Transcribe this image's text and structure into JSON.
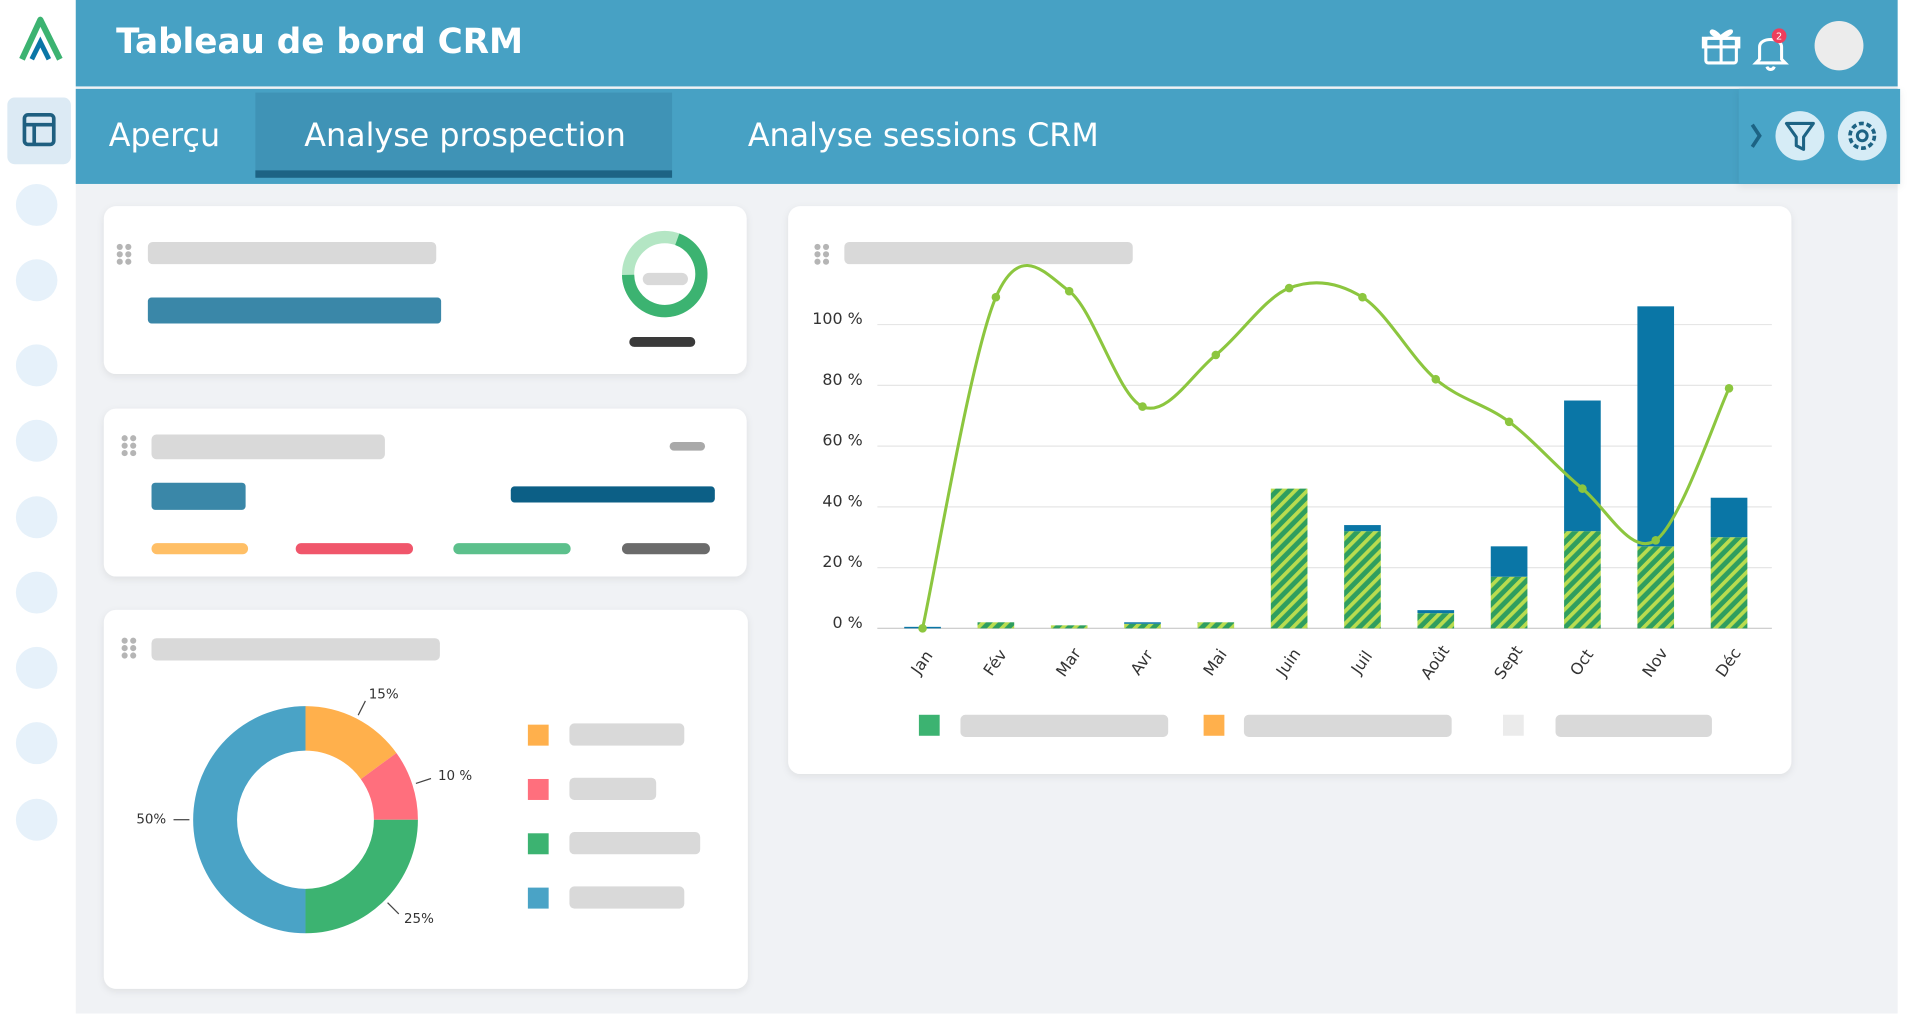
{
  "header": {
    "title": "Tableau de bord CRM",
    "notification_count": 2
  },
  "tabs": [
    "Aperçu",
    "Analyse prospection",
    "Analyse sessions CRM"
  ],
  "chart_data": [
    {
      "type": "bar",
      "categories": [
        "Jan",
        "Fév",
        "Mar",
        "Avr",
        "Mai",
        "Juin",
        "Juil",
        "Août",
        "Sept",
        "Oct",
        "Nov",
        "Déc"
      ],
      "series": [
        {
          "color": "#2f9e5f",
          "hatch": true,
          "values": [
            0,
            2,
            1,
            1.5,
            2,
            46,
            32,
            5,
            17,
            32,
            27,
            30
          ]
        },
        {
          "color": "#0a76a6",
          "values": [
            0.5,
            0,
            0,
            0.5,
            0,
            0,
            2,
            1,
            10,
            43,
            79,
            13
          ]
        },
        {
          "type": "line",
          "color": "#8cc63f",
          "values": [
            0,
            109,
            111,
            73,
            90,
            112,
            109,
            82,
            68,
            46,
            29,
            79
          ]
        }
      ],
      "ylim": [
        0,
        115
      ],
      "yticks": [
        {
          "value": 0,
          "label": "0 %"
        },
        {
          "value": 20,
          "label": "20 %"
        },
        {
          "value": 40,
          "label": "40 %"
        },
        {
          "value": 60,
          "label": "60 %"
        },
        {
          "value": 80,
          "label": "80 %"
        },
        {
          "value": 100,
          "label": "100 %"
        }
      ],
      "grid": true
    },
    {
      "type": "pie",
      "values": [
        15,
        10,
        25,
        50
      ],
      "value_labels": [
        "15%",
        "10 %",
        "25%",
        "50%"
      ],
      "colors": [
        "#ffb04c",
        "#ff6f7d",
        "#3cb371",
        "#4aa3c6"
      ]
    }
  ]
}
